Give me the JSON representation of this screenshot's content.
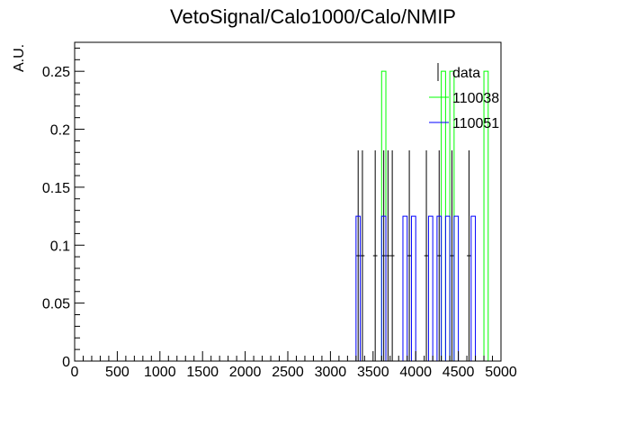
{
  "chart_data": {
    "type": "histogram",
    "title": "VetoSignal/Calo1000/Calo/NMIP",
    "xlabel": "",
    "ylabel": "A.U.",
    "xlim": [
      0,
      5000
    ],
    "ylim": [
      0,
      0.275
    ],
    "bin_width": 50,
    "x_ticks": [
      0,
      500,
      1000,
      1500,
      2000,
      2500,
      3000,
      3500,
      4000,
      4500,
      5000
    ],
    "y_ticks": [
      0,
      0.05,
      0.1,
      0.15,
      0.2,
      0.25
    ],
    "x_tick_labels": [
      "0",
      "500",
      "1000",
      "1500",
      "2000",
      "2500",
      "3000",
      "3500",
      "4000",
      "4500",
      "5000"
    ],
    "y_tick_labels": [
      "0",
      "0.05",
      "0.1",
      "0.15",
      "0.2",
      "0.25"
    ],
    "legend_position": "top-right",
    "series": [
      {
        "name": "data",
        "kind": "points-with-errors",
        "color": "#000000",
        "points": [
          {
            "x": 3325,
            "y": 0.0909,
            "err": 0.0909
          },
          {
            "x": 3375,
            "y": 0.0909,
            "err": 0.0909
          },
          {
            "x": 3525,
            "y": 0.0909,
            "err": 0.0909
          },
          {
            "x": 3625,
            "y": 0.0909,
            "err": 0.0909
          },
          {
            "x": 3675,
            "y": 0.0909,
            "err": 0.0909
          },
          {
            "x": 3725,
            "y": 0.0909,
            "err": 0.0909
          },
          {
            "x": 3925,
            "y": 0.0909,
            "err": 0.0909
          },
          {
            "x": 4125,
            "y": 0.0909,
            "err": 0.0909
          },
          {
            "x": 4275,
            "y": 0.0909,
            "err": 0.0909
          },
          {
            "x": 4425,
            "y": 0.0909,
            "err": 0.0909
          },
          {
            "x": 4625,
            "y": 0.0909,
            "err": 0.0909
          }
        ]
      },
      {
        "name": "110038",
        "kind": "step",
        "color": "#00ff00",
        "bins": [
          {
            "x0": 3600,
            "x1": 3650,
            "y": 0.25
          },
          {
            "x0": 4300,
            "x1": 4350,
            "y": 0.25
          },
          {
            "x0": 4400,
            "x1": 4450,
            "y": 0.25
          },
          {
            "x0": 4800,
            "x1": 4850,
            "y": 0.25
          }
        ]
      },
      {
        "name": "110051",
        "kind": "step",
        "color": "#0000ff",
        "bins": [
          {
            "x0": 3300,
            "x1": 3350,
            "y": 0.125
          },
          {
            "x0": 3600,
            "x1": 3650,
            "y": 0.125
          },
          {
            "x0": 3850,
            "x1": 3900,
            "y": 0.125
          },
          {
            "x0": 3950,
            "x1": 4000,
            "y": 0.125
          },
          {
            "x0": 4150,
            "x1": 4200,
            "y": 0.125
          },
          {
            "x0": 4250,
            "x1": 4300,
            "y": 0.125
          },
          {
            "x0": 4350,
            "x1": 4400,
            "y": 0.125
          },
          {
            "x0": 4450,
            "x1": 4500,
            "y": 0.125
          },
          {
            "x0": 4650,
            "x1": 4700,
            "y": 0.125
          }
        ]
      }
    ]
  }
}
